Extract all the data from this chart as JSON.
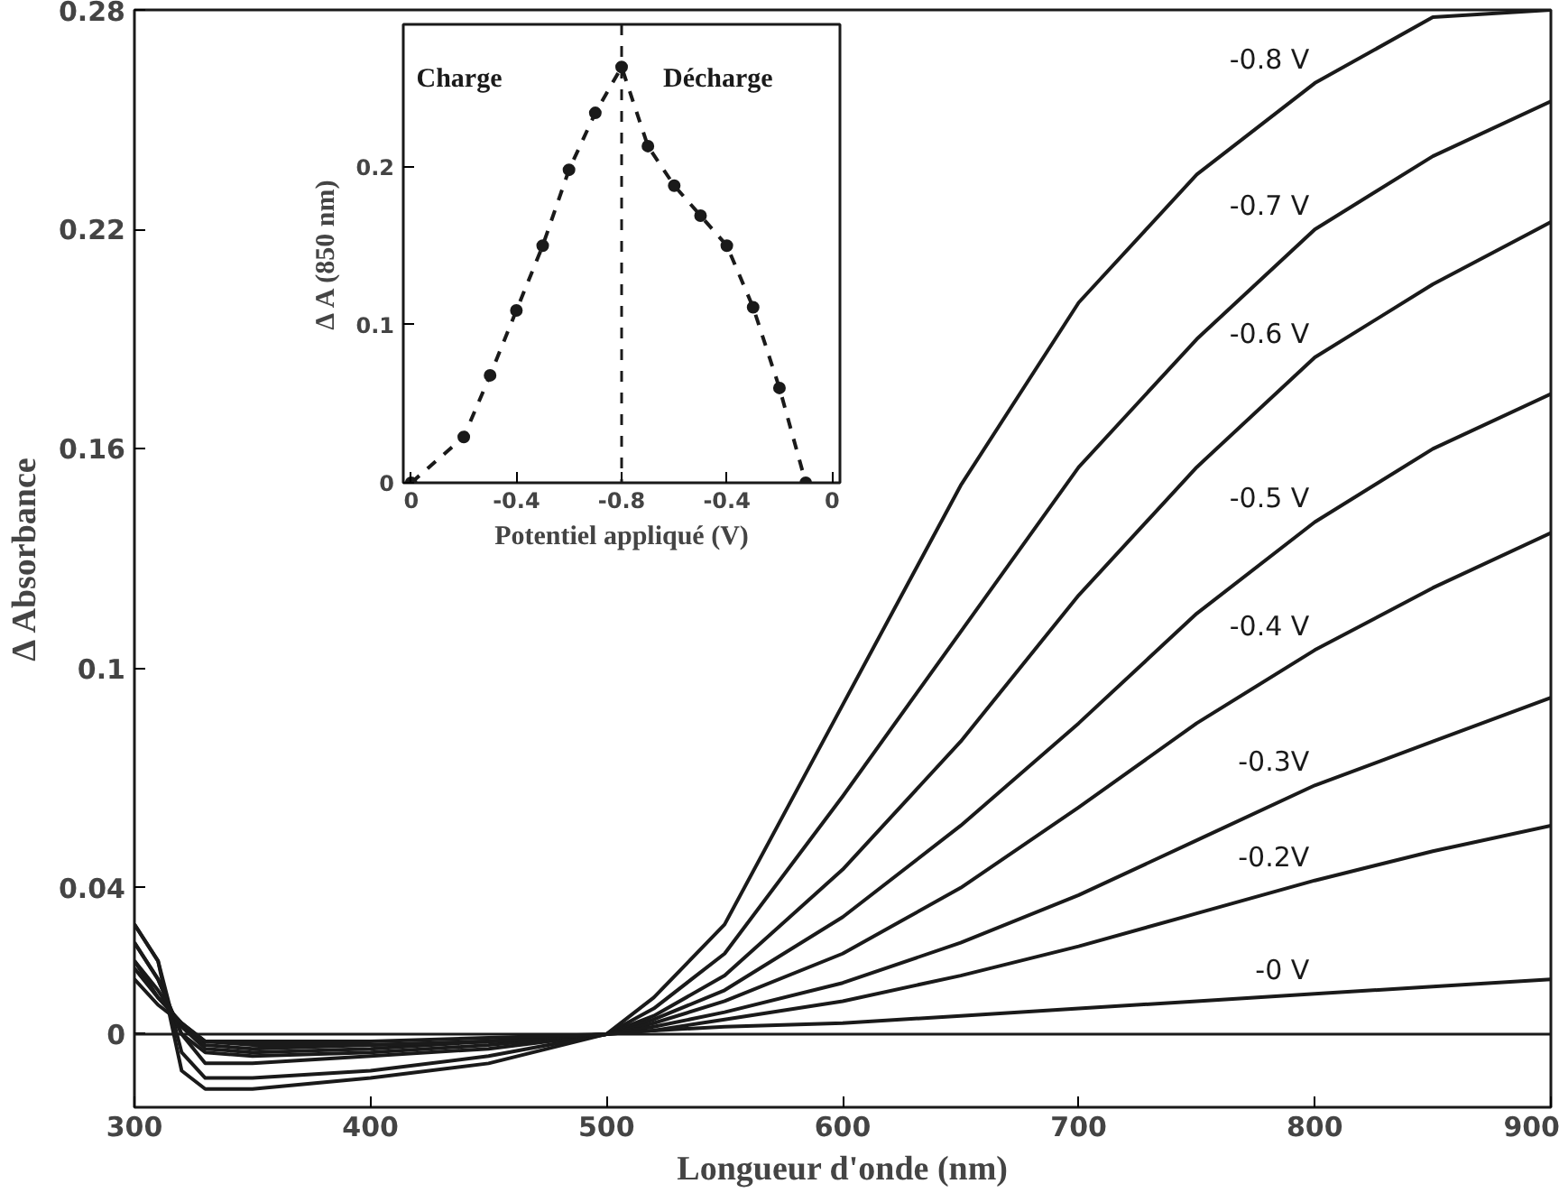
{
  "chart_data": [
    {
      "type": "line",
      "xlabel": "Longueur d'onde (nm)",
      "ylabel": "Δ Absorbance",
      "x": [
        300,
        310,
        320,
        330,
        350,
        400,
        450,
        500,
        520,
        550,
        600,
        650,
        700,
        750,
        800,
        850,
        900
      ],
      "xlim": [
        300,
        900
      ],
      "ylim": [
        -0.02,
        0.28
      ],
      "xticks": [
        300,
        400,
        500,
        600,
        700,
        800,
        900
      ],
      "yticks": [
        0,
        0.04,
        0.1,
        0.16,
        0.22,
        0.28
      ],
      "grid": false,
      "legend": false,
      "marker": "none",
      "line_style": "solid",
      "color": "#1a1a1a",
      "series": [
        {
          "name": "-0.8 V",
          "values": [
            0.03,
            0.02,
            -0.01,
            -0.015,
            -0.015,
            -0.012,
            -0.008,
            0,
            0.01,
            0.03,
            0.09,
            0.15,
            0.2,
            0.235,
            0.26,
            0.278,
            0.28
          ]
        },
        {
          "name": "-0.7 V",
          "values": [
            0.03,
            0.02,
            -0.005,
            -0.012,
            -0.012,
            -0.01,
            -0.006,
            0,
            0.007,
            0.022,
            0.065,
            0.11,
            0.155,
            0.19,
            0.22,
            0.24,
            0.255
          ]
        },
        {
          "name": "-0.6 V",
          "values": [
            0.025,
            0.015,
            0,
            -0.008,
            -0.008,
            -0.006,
            -0.004,
            0,
            0.005,
            0.016,
            0.045,
            0.08,
            0.12,
            0.155,
            0.185,
            0.205,
            0.222
          ]
        },
        {
          "name": "-0.5 V",
          "values": [
            0.025,
            0.015,
            0,
            -0.005,
            -0.006,
            -0.005,
            -0.003,
            0,
            0.004,
            0.012,
            0.032,
            0.057,
            0.085,
            0.115,
            0.14,
            0.16,
            0.175
          ]
        },
        {
          "name": "-0.4 V",
          "values": [
            0.02,
            0.012,
            0.002,
            -0.004,
            -0.005,
            -0.004,
            -0.002,
            0,
            0.003,
            0.009,
            0.022,
            0.04,
            0.062,
            0.085,
            0.105,
            0.122,
            0.137
          ]
        },
        {
          "name": "-0.3V",
          "values": [
            0.02,
            0.01,
            0.003,
            -0.003,
            -0.004,
            -0.003,
            -0.002,
            0,
            0.002,
            0.006,
            0.014,
            0.025,
            0.038,
            0.053,
            0.068,
            0.08,
            0.092
          ]
        },
        {
          "name": "-0.2V",
          "values": [
            0.018,
            0.01,
            0.003,
            -0.002,
            -0.003,
            -0.003,
            -0.002,
            0,
            0.001,
            0.004,
            0.009,
            0.016,
            0.024,
            0.033,
            0.042,
            0.05,
            0.057
          ]
        },
        {
          "name": "-0 V",
          "values": [
            0.015,
            0.008,
            0.003,
            -0.002,
            -0.002,
            -0.002,
            -0.001,
            0,
            0.001,
            0.002,
            0.003,
            0.005,
            0.007,
            0.009,
            0.011,
            0.013,
            0.015
          ]
        }
      ],
      "ref_lines": [
        {
          "axis": "y",
          "value": 0,
          "color": "#1a1a1a"
        }
      ]
    },
    {
      "type": "line",
      "xlabel": "Potentiel appliqué (V)",
      "ylabel": "Δ A (850 nm)",
      "categories": [
        "0",
        null,
        null,
        null,
        "-0.4",
        null,
        null,
        null,
        "-0.8",
        null,
        null,
        null,
        "-0.4",
        null,
        null,
        null,
        "0"
      ],
      "ylim": [
        0,
        0.29
      ],
      "yticks": [
        0,
        0.1,
        0.2
      ],
      "grid": false,
      "legend": false,
      "marker": "circle",
      "line_style": "dashed",
      "color": "#1a1a1a",
      "series": [
        {
          "values": [
            0,
            null,
            0.029,
            0.068,
            0.109,
            0.15,
            0.198,
            0.234,
            0.263,
            0.213,
            0.188,
            0.169,
            0.15,
            0.111,
            0.06,
            0,
            null
          ]
        }
      ],
      "ref_lines": [
        {
          "axis": "x",
          "value": "-0.8",
          "color": "#1a1a1a",
          "line_style": "dashed"
        }
      ],
      "annotations": [
        "Charge",
        "Décharge"
      ]
    }
  ]
}
